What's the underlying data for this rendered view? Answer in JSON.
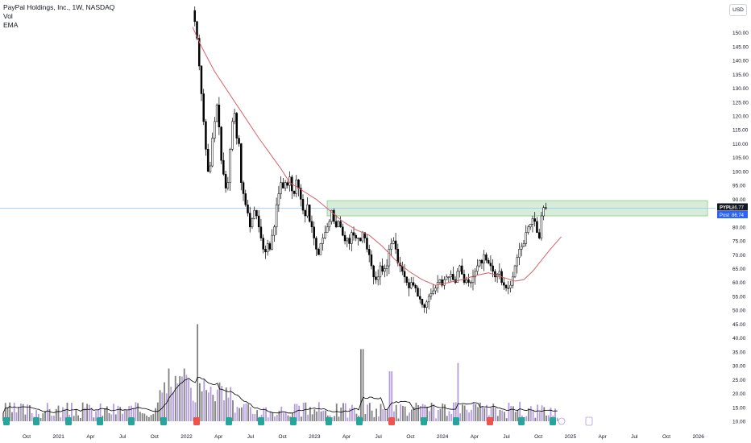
{
  "legend": {
    "title": "PayPal Holdings, Inc., 1W, NASDAQ",
    "vol_label": "Vol",
    "ema_label": "EMA"
  },
  "currency": "USD",
  "price_tag": {
    "symbol": "PYPL",
    "value": "86.77",
    "post_label": "Post",
    "post_value": "86.74"
  },
  "colors": {
    "up": "#ffffff",
    "down": "#000000",
    "outline": "#000000",
    "ema": "#d9606b",
    "zone_fill": "#c8e6c9",
    "zone_border": "#66bb6a",
    "price_line": "#90caf9",
    "vol_up": "#b39ddb",
    "vol_down": "#808080",
    "vol_ma": "#000000",
    "earnings": "#26a69a",
    "earnings_neg": "#ef5350",
    "axis_text": "#131722"
  },
  "chart_data": {
    "type": "candlestick",
    "y_axis": {
      "ticks": [
        "150.00",
        "145.00",
        "140.00",
        "135.00",
        "130.00",
        "125.00",
        "120.00",
        "115.00",
        "110.00",
        "105.00",
        "100.00",
        "95.00",
        "90.00",
        "85.00",
        "80.00",
        "75.00",
        "70.00",
        "65.00",
        "60.00",
        "55.00",
        "50.00",
        "45.00",
        "40.00",
        "35.00",
        "30.00",
        "25.00",
        "20.00",
        "15.00",
        "10.00"
      ],
      "range": [
        8,
        152.5
      ]
    },
    "x_axis": {
      "ticks": [
        "Oct",
        "2021",
        "Apr",
        "Jul",
        "Oct",
        "2022",
        "Apr",
        "Jul",
        "Oct",
        "2023",
        "Apr",
        "Jul",
        "Oct",
        "2024",
        "Apr",
        "Jul",
        "Oct",
        "2025",
        "Apr",
        "Jul",
        "Oct",
        "2026"
      ]
    },
    "resistance_zone": {
      "low": 84.0,
      "high": 89.5,
      "from": "2023-02",
      "to": "2024-11"
    },
    "last_price": 86.77,
    "weekly_closes": [
      158.0,
      154.0,
      148.0,
      138.0,
      128.0,
      118.0,
      108.0,
      100.0,
      102.0,
      112.0,
      118.0,
      124.0,
      116.0,
      104.0,
      99.0,
      94.0,
      96.0,
      108.0,
      118.0,
      121.0,
      112.0,
      110.0,
      96.0,
      92.0,
      88.0,
      85.0,
      80.0,
      83.0,
      86.0,
      84.0,
      80.0,
      76.0,
      72.0,
      71.0,
      74.0,
      72.0,
      77.0,
      80.0,
      88.0,
      92.0,
      96.0,
      94.0,
      96.0,
      95.0,
      98.0,
      93.0,
      92.0,
      97.0,
      94.0,
      90.0,
      86.0,
      84.0,
      88.0,
      82.0,
      80.0,
      76.0,
      72.0,
      70.0,
      74.0,
      76.0,
      78.0,
      80.0,
      82.0,
      86.0,
      82.0,
      80.0,
      82.0,
      80.0,
      77.0,
      75.0,
      76.0,
      74.0,
      78.0,
      77.0,
      76.0,
      76.0,
      75.0,
      78.0,
      76.0,
      72.0,
      70.0,
      66.0,
      62.0,
      61.0,
      62.0,
      66.0,
      64.0,
      65.0,
      66.0,
      72.0,
      74.0,
      75.0,
      72.0,
      67.0,
      66.0,
      64.0,
      62.0,
      60.0,
      58.0,
      60.0,
      59.0,
      58.0,
      55.0,
      54.0,
      52.0,
      51.0,
      53.0,
      55.0,
      56.0,
      57.0,
      58.0,
      60.0,
      61.0,
      59.0,
      61.0,
      62.0,
      62.0,
      63.0,
      61.0,
      60.0,
      64.0,
      66.0,
      63.0,
      60.0,
      61.0,
      60.0,
      60.0,
      62.0,
      64.0,
      66.0,
      68.0,
      67.0,
      70.0,
      68.0,
      67.0,
      66.0,
      64.0,
      62.0,
      63.0,
      64.0,
      60.0,
      59.0,
      58.0,
      58.0,
      59.0,
      62.0,
      66.0,
      69.0,
      72.0,
      73.0,
      74.0,
      78.0,
      80.0,
      81.0,
      83.0,
      82.0,
      78.0,
      76.0,
      84.0,
      87.0,
      86.77
    ],
    "ema_points": [
      [
        0,
        152.0
      ],
      [
        4,
        145.0
      ],
      [
        10,
        136.0
      ],
      [
        20,
        124.0
      ],
      [
        30,
        112.0
      ],
      [
        40,
        101.0
      ],
      [
        44,
        96.0
      ],
      [
        50,
        93.0
      ],
      [
        56,
        90.0
      ],
      [
        62,
        86.0
      ],
      [
        68,
        82.0
      ],
      [
        74,
        79.0
      ],
      [
        80,
        77.0
      ],
      [
        86,
        73.0
      ],
      [
        92,
        68.0
      ],
      [
        98,
        64.0
      ],
      [
        104,
        61.0
      ],
      [
        110,
        59.0
      ],
      [
        116,
        60.0
      ],
      [
        122,
        61.0
      ],
      [
        128,
        62.5
      ],
      [
        134,
        63.5
      ],
      [
        140,
        62.0
      ],
      [
        146,
        60.5
      ],
      [
        150,
        61.0
      ],
      [
        154,
        64.0
      ],
      [
        158,
        68.0
      ],
      [
        162,
        72.0
      ],
      [
        167,
        76.5
      ]
    ],
    "volume_axis_ticks": [
      45.0,
      40.0,
      35.0,
      30.0,
      25.0,
      20.0,
      15.0,
      10.0
    ]
  }
}
